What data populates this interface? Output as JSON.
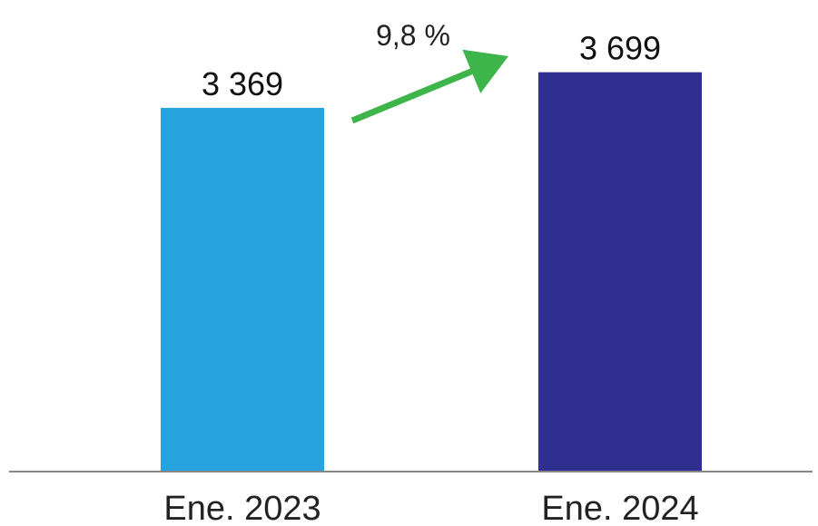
{
  "chart_data": {
    "type": "bar",
    "categories": [
      "Ene. 2023",
      "Ene. 2024"
    ],
    "values": [
      3369,
      3699
    ],
    "value_labels": [
      "3 369",
      "3 699"
    ],
    "bar_colors": [
      "#27A4E0",
      "#2E2F8E"
    ],
    "axis_color": "#888888",
    "change": {
      "label": "9,8 %",
      "direction": "up",
      "color": "#3DB54A"
    },
    "ylim": [
      0,
      4200
    ],
    "grid": false,
    "title": "",
    "xlabel": "",
    "ylabel": ""
  }
}
